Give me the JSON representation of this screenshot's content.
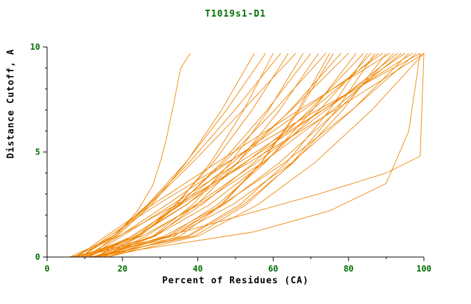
{
  "page": {
    "background": "#ffffff"
  },
  "chart_data": {
    "type": "line",
    "title": "T1019s1-D1",
    "xlabel": "Percent of Residues (CA)",
    "ylabel": "Distance Cutoff, A",
    "xlim": [
      0,
      100
    ],
    "ylim": [
      0,
      10
    ],
    "x_major_ticks": [
      0,
      20,
      40,
      60,
      80,
      100
    ],
    "x_minor_ticks": [
      10,
      30,
      50,
      70,
      90
    ],
    "y_major_ticks": [
      0,
      5,
      10
    ],
    "y_minor_ticks": [
      1,
      2,
      3,
      4,
      6,
      7,
      8,
      9
    ],
    "grid": false,
    "legend": "none",
    "line_color": "#ef8300",
    "title_color": "#006e00",
    "tick_color": "#006e00",
    "label_color": "#000000",
    "axis_color": "#000000",
    "series": [
      [
        [
          9,
          0
        ],
        [
          14,
          0.6
        ],
        [
          19,
          1.2
        ],
        [
          24,
          2.2
        ],
        [
          28,
          3.4
        ],
        [
          30,
          4.5
        ],
        [
          31.5,
          5.5
        ],
        [
          33,
          6.8
        ],
        [
          33.5,
          7.2
        ],
        [
          35,
          8.6
        ],
        [
          35.5,
          9.0
        ],
        [
          38,
          9.7
        ]
      ],
      [
        [
          6,
          0
        ],
        [
          18.5,
          1
        ],
        [
          27.8,
          2.5
        ],
        [
          36.9,
          4.5
        ],
        [
          46.3,
          7
        ],
        [
          55,
          9.7
        ]
      ],
      [
        [
          7,
          0
        ],
        [
          17.4,
          1
        ],
        [
          26.7,
          2.5
        ],
        [
          36.8,
          4.5
        ],
        [
          47.6,
          7
        ],
        [
          58,
          9.7
        ]
      ],
      [
        [
          8,
          0
        ],
        [
          24.7,
          1
        ],
        [
          34.4,
          2.5
        ],
        [
          43.4,
          4.5
        ],
        [
          52.2,
          7
        ],
        [
          60,
          9.7
        ]
      ],
      [
        [
          9,
          0
        ],
        [
          17.6,
          1
        ],
        [
          26.9,
          2.5
        ],
        [
          37.7,
          4.5
        ],
        [
          49.8,
          7
        ],
        [
          62,
          9.7
        ]
      ],
      [
        [
          10,
          0
        ],
        [
          23.8,
          1
        ],
        [
          34,
          2.5
        ],
        [
          44.1,
          4.5
        ],
        [
          54.4,
          7
        ],
        [
          64,
          9.7
        ]
      ],
      [
        [
          11,
          0
        ],
        [
          18.1,
          1
        ],
        [
          27.2,
          2.5
        ],
        [
          38.6,
          4.5
        ],
        [
          52,
          7
        ],
        [
          66,
          9.7
        ]
      ],
      [
        [
          12,
          0
        ],
        [
          28.1,
          1
        ],
        [
          38.7,
          2.5
        ],
        [
          48.7,
          4.5
        ],
        [
          58.8,
          7
        ],
        [
          68,
          9.7
        ]
      ],
      [
        [
          13,
          0
        ],
        [
          24.6,
          1
        ],
        [
          35.1,
          2.5
        ],
        [
          46.3,
          4.5
        ],
        [
          58.4,
          7
        ],
        [
          70,
          9.7
        ]
      ],
      [
        [
          14,
          0
        ],
        [
          28.8,
          1
        ],
        [
          39.8,
          2.5
        ],
        [
          50.6,
          4.5
        ],
        [
          61.7,
          7
        ],
        [
          72,
          9.7
        ]
      ],
      [
        [
          15,
          0
        ],
        [
          24.6,
          1
        ],
        [
          34.9,
          2.5
        ],
        [
          46.9,
          4.5
        ],
        [
          60.4,
          7
        ],
        [
          74,
          9.7
        ]
      ],
      [
        [
          16,
          0
        ],
        [
          35.3,
          1
        ],
        [
          46.5,
          2.5
        ],
        [
          56.9,
          4.5
        ],
        [
          67,
          7
        ],
        [
          76,
          9.7
        ]
      ],
      [
        [
          8,
          0
        ],
        [
          24,
          1
        ],
        [
          37.1,
          2.5
        ],
        [
          50.5,
          4.5
        ],
        [
          64.6,
          7
        ],
        [
          78,
          9.7
        ]
      ],
      [
        [
          10,
          0
        ],
        [
          22.7,
          1
        ],
        [
          35.3,
          2.5
        ],
        [
          49.3,
          4.5
        ],
        [
          64.8,
          7
        ],
        [
          80,
          9.7
        ]
      ],
      [
        [
          12,
          0
        ],
        [
          32.1,
          1
        ],
        [
          45.3,
          2.5
        ],
        [
          57.9,
          4.5
        ],
        [
          70.5,
          7
        ],
        [
          82,
          9.7
        ]
      ],
      [
        [
          14,
          0
        ],
        [
          28.3,
          1
        ],
        [
          41.1,
          2.5
        ],
        [
          54.9,
          4.5
        ],
        [
          69.7,
          7
        ],
        [
          84,
          9.7
        ]
      ],
      [
        [
          9,
          0
        ],
        [
          28.7,
          1
        ],
        [
          43.2,
          2.5
        ],
        [
          57.6,
          4.5
        ],
        [
          72.3,
          7
        ],
        [
          86,
          9.7
        ]
      ],
      [
        [
          11,
          0
        ],
        [
          23.5,
          1
        ],
        [
          37,
          2.5
        ],
        [
          52.7,
          4.5
        ],
        [
          70.3,
          7
        ],
        [
          88,
          9.7
        ]
      ],
      [
        [
          13,
          0
        ],
        [
          37.7,
          1
        ],
        [
          52.1,
          2.5
        ],
        [
          65.4,
          4.5
        ],
        [
          78.5,
          7
        ],
        [
          90,
          9.7
        ]
      ],
      [
        [
          15,
          0
        ],
        [
          32.6,
          1
        ],
        [
          47,
          2.5
        ],
        [
          61.7,
          4.5
        ],
        [
          77.3,
          7
        ],
        [
          92,
          9.7
        ]
      ],
      [
        [
          10,
          0
        ],
        [
          25.3,
          1
        ],
        [
          40.4,
          2.5
        ],
        [
          57.2,
          4.5
        ],
        [
          75.8,
          7
        ],
        [
          94,
          9.7
        ]
      ],
      [
        [
          12,
          0
        ],
        [
          33.5,
          1
        ],
        [
          49.3,
          2.5
        ],
        [
          65,
          4.5
        ],
        [
          81,
          7
        ],
        [
          96,
          9.7
        ]
      ],
      [
        [
          14,
          0
        ],
        [
          31.1,
          1
        ],
        [
          46.5,
          2.5
        ],
        [
          63.1,
          4.5
        ],
        [
          80.9,
          7
        ],
        [
          98,
          9.7
        ]
      ],
      [
        [
          16,
          0
        ],
        [
          40.1,
          1
        ],
        [
          56,
          2.5
        ],
        [
          71.1,
          4.5
        ],
        [
          86.2,
          7
        ],
        [
          100,
          9.7
        ]
      ],
      [
        [
          7,
          0
        ],
        [
          19,
          1
        ],
        [
          34.4,
          2.5
        ],
        [
          53.6,
          4.5
        ],
        [
          76.4,
          7
        ],
        [
          100,
          9.7
        ]
      ],
      [
        [
          9,
          0
        ],
        [
          16.4,
          1
        ],
        [
          29.3,
          2.5
        ],
        [
          47.7,
          4.5
        ],
        [
          71.8,
          7
        ],
        [
          99,
          9.7
        ]
      ],
      [
        [
          11,
          0
        ],
        [
          19.9,
          1
        ],
        [
          33.2,
          2.5
        ],
        [
          50.9,
          4.5
        ],
        [
          73.1,
          7
        ],
        [
          97,
          9.7
        ]
      ],
      [
        [
          13,
          0
        ],
        [
          22.5,
          1
        ],
        [
          35.6,
          2.5
        ],
        [
          52.5,
          4.5
        ],
        [
          73.2,
          7
        ],
        [
          95,
          9.7
        ]
      ],
      [
        [
          15,
          0
        ],
        [
          26.3,
          1
        ],
        [
          39.6,
          2.5
        ],
        [
          55.6,
          4.5
        ],
        [
          74.1,
          7
        ],
        [
          93,
          9.7
        ]
      ],
      [
        [
          8,
          0
        ],
        [
          15.6,
          1
        ],
        [
          28,
          2.5
        ],
        [
          45.1,
          4.5
        ],
        [
          66.9,
          7
        ],
        [
          91,
          9.7
        ]
      ],
      [
        [
          10,
          0
        ],
        [
          19.2,
          1
        ],
        [
          31.8,
          2.5
        ],
        [
          48.1,
          4.5
        ],
        [
          68,
          7
        ],
        [
          89,
          9.7
        ]
      ],
      [
        [
          12,
          0
        ],
        [
          39.2,
          1
        ],
        [
          52.9,
          2.5
        ],
        [
          65.1,
          4.5
        ],
        [
          76.8,
          7
        ],
        [
          87,
          9.7
        ]
      ],
      [
        [
          6,
          0
        ],
        [
          33.8,
          1
        ],
        [
          46.2,
          2.5
        ],
        [
          56.8,
          4.5
        ],
        [
          66.6,
          7
        ],
        [
          75,
          9.7
        ]
      ],
      [
        [
          7,
          0
        ],
        [
          37.2,
          1
        ],
        [
          51.2,
          2.5
        ],
        [
          63.6,
          4.5
        ],
        [
          75,
          7
        ],
        [
          85,
          9.7
        ]
      ],
      [
        [
          16,
          0
        ],
        [
          32,
          1
        ],
        [
          52,
          2
        ],
        [
          72,
          3
        ],
        [
          90,
          4
        ],
        [
          99,
          4.8
        ],
        [
          100,
          9.7
        ]
      ],
      [
        [
          11,
          0
        ],
        [
          30,
          0.5
        ],
        [
          55,
          1.2
        ],
        [
          75,
          2.2
        ],
        [
          90,
          3.5
        ],
        [
          96,
          6
        ],
        [
          99,
          9.7
        ]
      ]
    ]
  }
}
